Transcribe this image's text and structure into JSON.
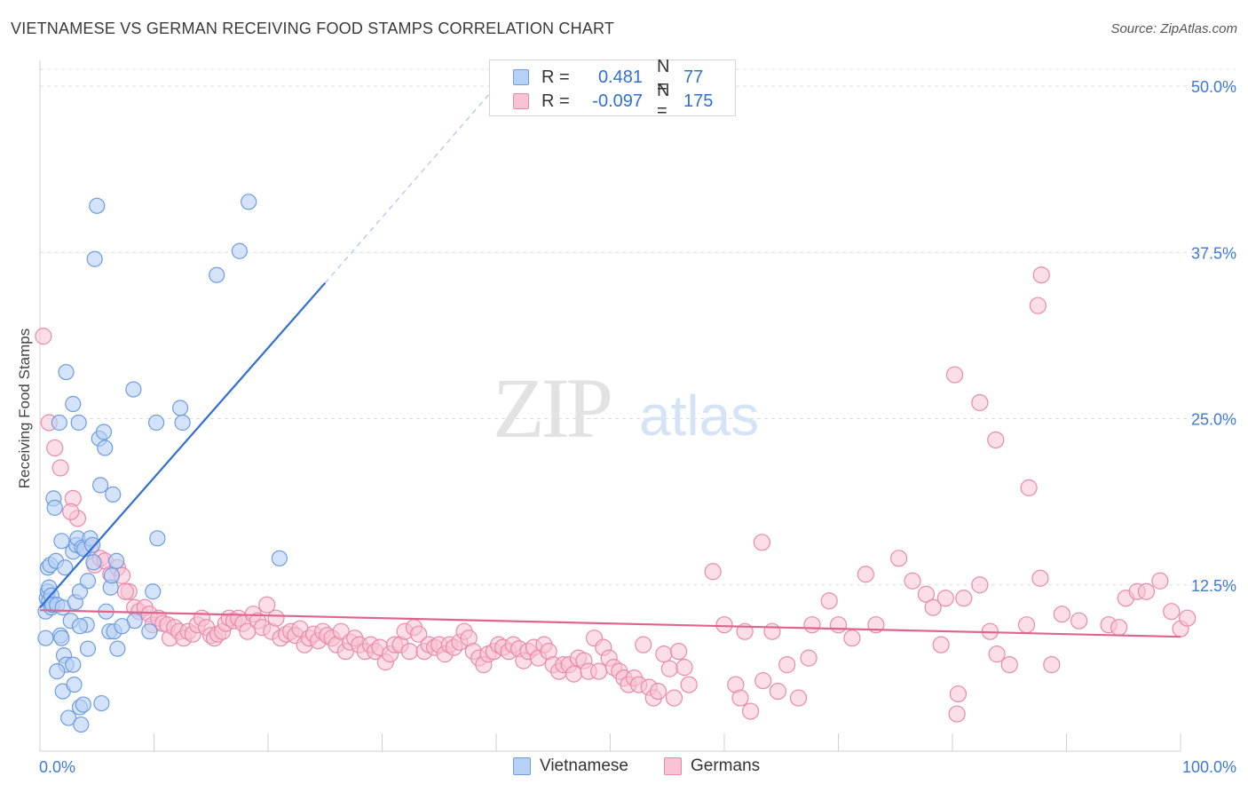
{
  "title": "VIETNAMESE VS GERMAN RECEIVING FOOD STAMPS CORRELATION CHART",
  "source": "Source: ZipAtlas.com",
  "watermark": {
    "zip": "ZIP",
    "atlas": "atlas"
  },
  "colors": {
    "vietnamese_fill": "#b7d1f5",
    "vietnamese_stroke": "#6d9de0",
    "vietnamese_line": "#2f6fd6",
    "german_fill": "#f8c3d4",
    "german_stroke": "#e98aaa",
    "german_line": "#e0648e",
    "grid": "#dddddd",
    "axis_text": "#3d7ad8"
  },
  "legend": {
    "rows": [
      {
        "r_label": "R =",
        "r_value": "0.481",
        "n_label": "N =",
        "n_value": "77"
      },
      {
        "r_label": "R =",
        "r_value": "-0.097",
        "n_label": "N =",
        "n_value": "175"
      }
    ]
  },
  "chart_data": {
    "type": "scatter",
    "ylabel": "Receiving Food Stamps",
    "xlim": [
      0,
      100
    ],
    "ylim": [
      0,
      50
    ],
    "x_tick_labels": [
      "0.0%",
      "100.0%"
    ],
    "y_tick_labels": [
      "12.5%",
      "25.0%",
      "37.5%",
      "50.0%"
    ],
    "y_ticks": [
      12.5,
      25.0,
      37.5,
      50.0
    ],
    "grid": true,
    "legend_position": "top-center",
    "series": [
      {
        "name": "Vietnamese",
        "r": 0.481,
        "n": 77,
        "trend": {
          "x0": 0.0,
          "y0": 10.8,
          "x1": 25.0,
          "y1": 35.2,
          "dashed_to_x": 40.0,
          "dashed_to_y": 50.0
        },
        "points": [
          [
            0.5,
            10.5
          ],
          [
            0.5,
            8.5
          ],
          [
            0.6,
            11.5
          ],
          [
            0.7,
            12.0
          ],
          [
            0.7,
            13.8
          ],
          [
            0.8,
            12.3
          ],
          [
            0.8,
            11.3
          ],
          [
            0.9,
            14.0
          ],
          [
            1.0,
            10.8
          ],
          [
            1.0,
            11.7
          ],
          [
            1.1,
            11.0
          ],
          [
            1.2,
            19.0
          ],
          [
            1.3,
            18.3
          ],
          [
            1.4,
            14.3
          ],
          [
            1.5,
            11.0
          ],
          [
            1.7,
            24.7
          ],
          [
            1.8,
            8.7
          ],
          [
            1.9,
            15.8
          ],
          [
            1.9,
            8.5
          ],
          [
            2.0,
            10.8
          ],
          [
            2.0,
            4.5
          ],
          [
            2.1,
            7.2
          ],
          [
            2.2,
            13.8
          ],
          [
            2.3,
            6.5
          ],
          [
            2.3,
            28.5
          ],
          [
            2.5,
            2.5
          ],
          [
            2.7,
            9.8
          ],
          [
            2.9,
            26.1
          ],
          [
            2.9,
            6.5
          ],
          [
            2.9,
            15.0
          ],
          [
            3.0,
            5.0
          ],
          [
            3.1,
            11.2
          ],
          [
            3.2,
            15.5
          ],
          [
            3.3,
            16.0
          ],
          [
            3.4,
            24.7
          ],
          [
            3.5,
            12.0
          ],
          [
            3.5,
            3.3
          ],
          [
            3.6,
            2.0
          ],
          [
            3.7,
            15.3
          ],
          [
            3.8,
            3.5
          ],
          [
            3.9,
            15.2
          ],
          [
            4.1,
            9.5
          ],
          [
            4.2,
            12.8
          ],
          [
            4.2,
            7.7
          ],
          [
            4.4,
            16.0
          ],
          [
            4.6,
            15.5
          ],
          [
            4.7,
            14.2
          ],
          [
            5.0,
            41.0
          ],
          [
            5.2,
            23.5
          ],
          [
            5.3,
            20.0
          ],
          [
            5.4,
            3.6
          ],
          [
            5.6,
            24.0
          ],
          [
            5.7,
            22.8
          ],
          [
            5.8,
            10.5
          ],
          [
            6.1,
            9.0
          ],
          [
            6.2,
            12.3
          ],
          [
            6.3,
            13.2
          ],
          [
            6.4,
            19.3
          ],
          [
            6.5,
            9.0
          ],
          [
            6.7,
            14.3
          ],
          [
            6.8,
            7.7
          ],
          [
            4.8,
            37.0
          ],
          [
            8.2,
            27.2
          ],
          [
            8.3,
            9.8
          ],
          [
            9.6,
            9.0
          ],
          [
            9.9,
            12.0
          ],
          [
            10.2,
            24.7
          ],
          [
            10.3,
            16.0
          ],
          [
            12.3,
            25.8
          ],
          [
            12.5,
            24.7
          ],
          [
            15.5,
            35.8
          ],
          [
            17.5,
            37.6
          ],
          [
            18.3,
            41.3
          ],
          [
            21.0,
            14.5
          ],
          [
            7.2,
            9.4
          ],
          [
            3.5,
            9.4
          ],
          [
            1.5,
            6.0
          ]
        ]
      },
      {
        "name": "Germans",
        "r": -0.097,
        "n": 175,
        "trend": {
          "x0": 0.0,
          "y0": 10.6,
          "x1": 100.0,
          "y1": 8.6
        },
        "points": [
          [
            0.3,
            31.2
          ],
          [
            0.8,
            24.7
          ],
          [
            1.3,
            22.8
          ],
          [
            1.8,
            21.3
          ],
          [
            2.9,
            19.0
          ],
          [
            3.3,
            17.5
          ],
          [
            2.7,
            18.0
          ],
          [
            4.4,
            15.3
          ],
          [
            4.8,
            14.0
          ],
          [
            5.3,
            14.5
          ],
          [
            5.7,
            14.3
          ],
          [
            6.2,
            13.3
          ],
          [
            6.8,
            13.8
          ],
          [
            7.2,
            13.2
          ],
          [
            7.8,
            12.0
          ],
          [
            7.5,
            12.0
          ],
          [
            8.3,
            10.8
          ],
          [
            8.7,
            10.5
          ],
          [
            9.2,
            10.8
          ],
          [
            9.6,
            10.3
          ],
          [
            9.9,
            9.5
          ],
          [
            10.4,
            10.0
          ],
          [
            10.8,
            9.6
          ],
          [
            11.2,
            9.5
          ],
          [
            11.4,
            8.5
          ],
          [
            11.8,
            9.3
          ],
          [
            12.2,
            9.0
          ],
          [
            12.6,
            8.5
          ],
          [
            13.0,
            9.0
          ],
          [
            13.4,
            8.8
          ],
          [
            13.8,
            9.5
          ],
          [
            14.2,
            10.0
          ],
          [
            14.6,
            9.3
          ],
          [
            15.0,
            8.7
          ],
          [
            15.3,
            8.5
          ],
          [
            15.6,
            8.8
          ],
          [
            16.0,
            9.0
          ],
          [
            16.3,
            9.6
          ],
          [
            16.6,
            10.0
          ],
          [
            17.0,
            9.8
          ],
          [
            17.4,
            10.0
          ],
          [
            17.8,
            9.6
          ],
          [
            18.2,
            9.0
          ],
          [
            18.7,
            10.3
          ],
          [
            19.1,
            9.8
          ],
          [
            19.5,
            9.3
          ],
          [
            19.9,
            11.0
          ],
          [
            20.3,
            9.0
          ],
          [
            20.7,
            10.0
          ],
          [
            21.1,
            8.5
          ],
          [
            21.6,
            8.8
          ],
          [
            22.0,
            9.0
          ],
          [
            22.4,
            8.7
          ],
          [
            22.8,
            9.2
          ],
          [
            23.2,
            8.0
          ],
          [
            23.6,
            8.5
          ],
          [
            24.0,
            8.8
          ],
          [
            24.4,
            8.3
          ],
          [
            24.8,
            9.0
          ],
          [
            25.2,
            8.7
          ],
          [
            25.6,
            8.5
          ],
          [
            26.0,
            8.0
          ],
          [
            26.4,
            9.0
          ],
          [
            26.8,
            7.5
          ],
          [
            27.2,
            8.2
          ],
          [
            27.6,
            8.5
          ],
          [
            28.0,
            8.0
          ],
          [
            28.5,
            7.5
          ],
          [
            29.0,
            8.0
          ],
          [
            29.4,
            7.5
          ],
          [
            29.8,
            7.8
          ],
          [
            30.3,
            6.7
          ],
          [
            30.7,
            7.3
          ],
          [
            31.1,
            8.0
          ],
          [
            31.6,
            8.0
          ],
          [
            32.0,
            9.0
          ],
          [
            32.4,
            7.5
          ],
          [
            32.8,
            9.3
          ],
          [
            33.2,
            8.8
          ],
          [
            33.7,
            7.5
          ],
          [
            34.1,
            8.0
          ],
          [
            34.6,
            7.8
          ],
          [
            35.0,
            8.0
          ],
          [
            35.5,
            7.3
          ],
          [
            35.9,
            8.0
          ],
          [
            36.3,
            7.8
          ],
          [
            36.8,
            8.2
          ],
          [
            37.2,
            9.0
          ],
          [
            37.6,
            8.5
          ],
          [
            38.0,
            7.5
          ],
          [
            38.5,
            7.0
          ],
          [
            38.9,
            6.5
          ],
          [
            39.3,
            7.3
          ],
          [
            39.8,
            7.5
          ],
          [
            40.2,
            8.0
          ],
          [
            40.6,
            7.8
          ],
          [
            41.1,
            7.5
          ],
          [
            41.5,
            8.0
          ],
          [
            42.0,
            7.7
          ],
          [
            42.4,
            6.8
          ],
          [
            42.8,
            7.5
          ],
          [
            43.3,
            7.8
          ],
          [
            43.7,
            7.0
          ],
          [
            44.2,
            8.0
          ],
          [
            44.6,
            7.5
          ],
          [
            45.0,
            6.5
          ],
          [
            45.5,
            6.0
          ],
          [
            45.9,
            6.5
          ],
          [
            46.4,
            6.5
          ],
          [
            46.8,
            5.8
          ],
          [
            47.2,
            7.0
          ],
          [
            47.7,
            6.8
          ],
          [
            48.1,
            6.0
          ],
          [
            48.6,
            8.5
          ],
          [
            49.0,
            6.0
          ],
          [
            49.4,
            7.8
          ],
          [
            49.9,
            7.0
          ],
          [
            50.3,
            6.3
          ],
          [
            50.8,
            6.0
          ],
          [
            51.2,
            5.5
          ],
          [
            51.6,
            5.0
          ],
          [
            52.1,
            5.5
          ],
          [
            52.5,
            5.0
          ],
          [
            52.9,
            8.0
          ],
          [
            53.4,
            4.8
          ],
          [
            53.8,
            4.0
          ],
          [
            54.2,
            4.5
          ],
          [
            54.7,
            7.3
          ],
          [
            55.2,
            6.2
          ],
          [
            55.6,
            4.0
          ],
          [
            56.0,
            7.5
          ],
          [
            56.5,
            6.3
          ],
          [
            56.9,
            5.0
          ],
          [
            61.0,
            5.0
          ],
          [
            61.4,
            4.0
          ],
          [
            62.3,
            3.0
          ],
          [
            63.4,
            5.3
          ],
          [
            64.7,
            4.5
          ],
          [
            65.5,
            6.5
          ],
          [
            66.5,
            4.0
          ],
          [
            67.4,
            7.0
          ],
          [
            63.3,
            15.7
          ],
          [
            59.0,
            13.5
          ],
          [
            60.0,
            9.5
          ],
          [
            61.8,
            9.0
          ],
          [
            64.2,
            9.0
          ],
          [
            67.7,
            9.5
          ],
          [
            69.2,
            11.3
          ],
          [
            70.0,
            9.5
          ],
          [
            71.2,
            8.5
          ],
          [
            72.4,
            13.3
          ],
          [
            73.3,
            9.5
          ],
          [
            75.3,
            14.5
          ],
          [
            76.5,
            12.8
          ],
          [
            77.7,
            11.8
          ],
          [
            78.3,
            10.8
          ],
          [
            79.4,
            11.5
          ],
          [
            80.5,
            4.3
          ],
          [
            81.0,
            11.5
          ],
          [
            82.4,
            12.5
          ],
          [
            83.3,
            9.0
          ],
          [
            83.9,
            7.3
          ],
          [
            85.0,
            6.5
          ],
          [
            86.5,
            9.5
          ],
          [
            87.7,
            13.0
          ],
          [
            88.7,
            6.5
          ],
          [
            89.6,
            10.3
          ],
          [
            91.1,
            9.8
          ],
          [
            93.7,
            9.5
          ],
          [
            94.6,
            9.3
          ],
          [
            95.2,
            11.5
          ],
          [
            96.2,
            12.0
          ],
          [
            97.0,
            12.0
          ],
          [
            98.2,
            12.8
          ],
          [
            99.2,
            10.5
          ],
          [
            100.0,
            9.2
          ],
          [
            100.6,
            10.0
          ],
          [
            80.2,
            28.3
          ],
          [
            82.4,
            26.2
          ],
          [
            83.8,
            23.4
          ],
          [
            86.7,
            19.8
          ],
          [
            87.5,
            33.5
          ],
          [
            87.8,
            35.8
          ],
          [
            80.4,
            2.8
          ],
          [
            79.0,
            8.0
          ]
        ]
      }
    ]
  }
}
